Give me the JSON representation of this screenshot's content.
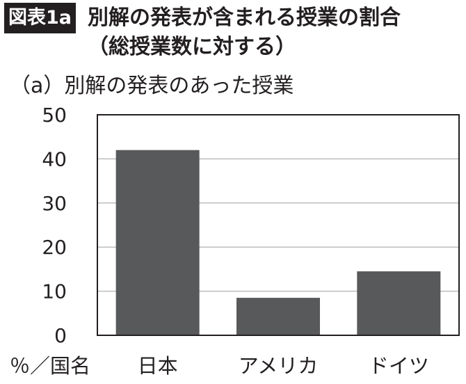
{
  "header": {
    "badge": "図表1a",
    "title": "別解の発表が含まれる授業の割合",
    "subtitle": "（総授業数に対する）"
  },
  "panel_label": "（a）別解の発表のあった授業",
  "colors": {
    "bar": "#58595b",
    "axis": "#231f20",
    "grid": "#bcbcbc",
    "badge_bg": "#231f20"
  },
  "chart_data": {
    "type": "bar",
    "title": "（a）別解の発表のあった授業",
    "xlabel": "％／国名",
    "ylabel": "",
    "categories": [
      "日本",
      "アメリカ",
      "ドイツ"
    ],
    "values": [
      42,
      8.5,
      14.5
    ],
    "ylim": [
      0,
      50
    ],
    "yticks": [
      0,
      10,
      20,
      30,
      40,
      50
    ],
    "grid": true,
    "legend": "none"
  }
}
